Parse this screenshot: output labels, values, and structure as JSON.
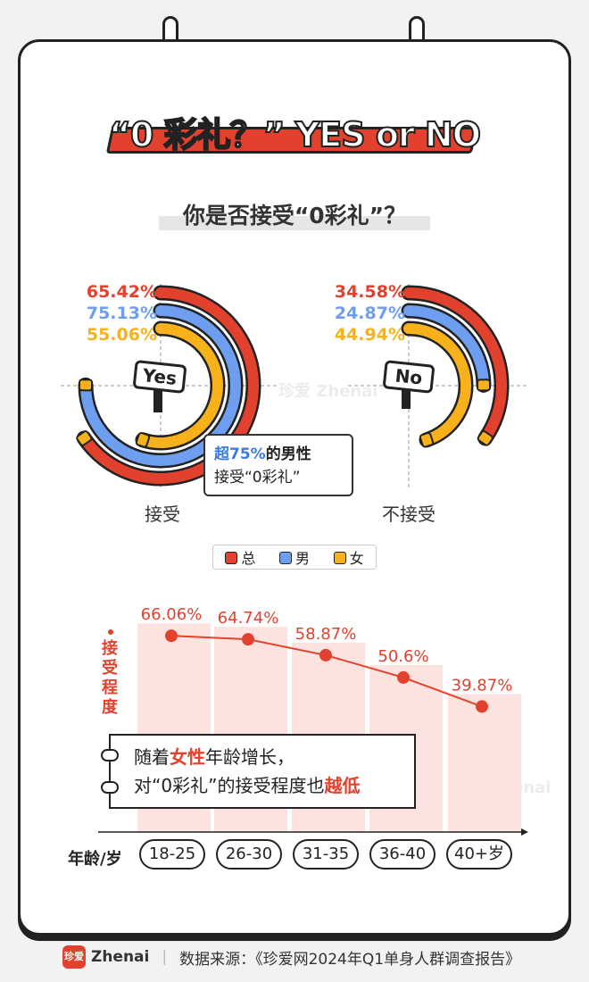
{
  "title": "“0 彩礼？” YES or NO",
  "subtitle": "你是否接受“0彩礼”？",
  "accept": {
    "caption": "接受",
    "sign": "Yes",
    "total": "65.42%",
    "male": "75.13%",
    "female": "55.06%"
  },
  "reject": {
    "caption": "不接受",
    "sign": "No",
    "total": "34.58%",
    "male": "24.87%",
    "female": "44.94%"
  },
  "callout": {
    "part1": "超",
    "highlight": "75%",
    "part2": "的男性",
    "line2": "接受“0彩礼”"
  },
  "legend": [
    {
      "label": "总",
      "color": "#e2422d"
    },
    {
      "label": "男",
      "color": "#6e9ef0"
    },
    {
      "label": "女",
      "color": "#f7b21b"
    }
  ],
  "colors": {
    "total": "#e2422d",
    "male": "#6e9ef0",
    "female": "#f7b21b"
  },
  "chart_data": [
    {
      "type": "pie",
      "title": "你是否接受“0彩礼”？",
      "categories": [
        "接受",
        "不接受"
      ],
      "series": [
        {
          "name": "总",
          "values": [
            65.42,
            34.58
          ]
        },
        {
          "name": "男",
          "values": [
            75.13,
            24.87
          ]
        },
        {
          "name": "女",
          "values": [
            55.06,
            44.94
          ]
        }
      ]
    },
    {
      "type": "line",
      "ylabel": "接受程度",
      "xlabel": "年龄/岁",
      "categories": [
        "18-25",
        "26-30",
        "31-35",
        "36-40",
        "40+岁"
      ],
      "values": [
        66.06,
        64.74,
        58.87,
        50.6,
        39.87
      ],
      "labels": [
        "66.06%",
        "64.74%",
        "58.87%",
        "50.6%",
        "39.87%"
      ]
    }
  ],
  "age_axis_label": "年龄/岁",
  "y_axis_label": "接受程度",
  "note": {
    "line1_a": "随着",
    "line1_hl": "女性",
    "line1_b": "年龄增长，",
    "line2_a": "对“0彩礼”的接受程度也",
    "line2_hl": "越低"
  },
  "watermark": "珍爱 Zhenai",
  "footer": {
    "logo_icon": "珍爱",
    "brand": "Zhenai",
    "separator": "|",
    "source": "数据来源：《珍爱网2024年Q1单身人群调查报告》"
  }
}
